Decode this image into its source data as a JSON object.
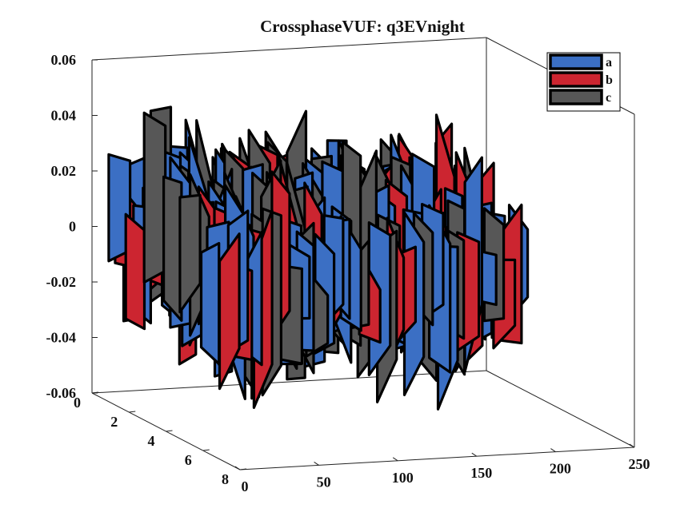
{
  "chart_data": {
    "type": "3d-ribbon",
    "title": "CrossphaseVUF: q3EVnight",
    "xlabel": "",
    "ylabel": "",
    "zlabel": "",
    "x_ticks": [
      "0",
      "50",
      "100",
      "150",
      "200",
      "250"
    ],
    "y_ticks": [
      "0",
      "2",
      "4",
      "6",
      "8"
    ],
    "z_ticks": [
      "0.06",
      "0.04",
      "0.02",
      "0",
      "-0.02",
      "-0.04",
      "-0.06"
    ],
    "xlim": [
      0,
      250
    ],
    "ylim": [
      0,
      8
    ],
    "zlim": [
      -0.06,
      0.06
    ],
    "legend_position": "top-right",
    "series": [
      {
        "name": "a",
        "color": "#3b6fc4"
      },
      {
        "name": "b",
        "color": "#cc2530"
      },
      {
        "name": "c",
        "color": "#575757"
      }
    ]
  }
}
